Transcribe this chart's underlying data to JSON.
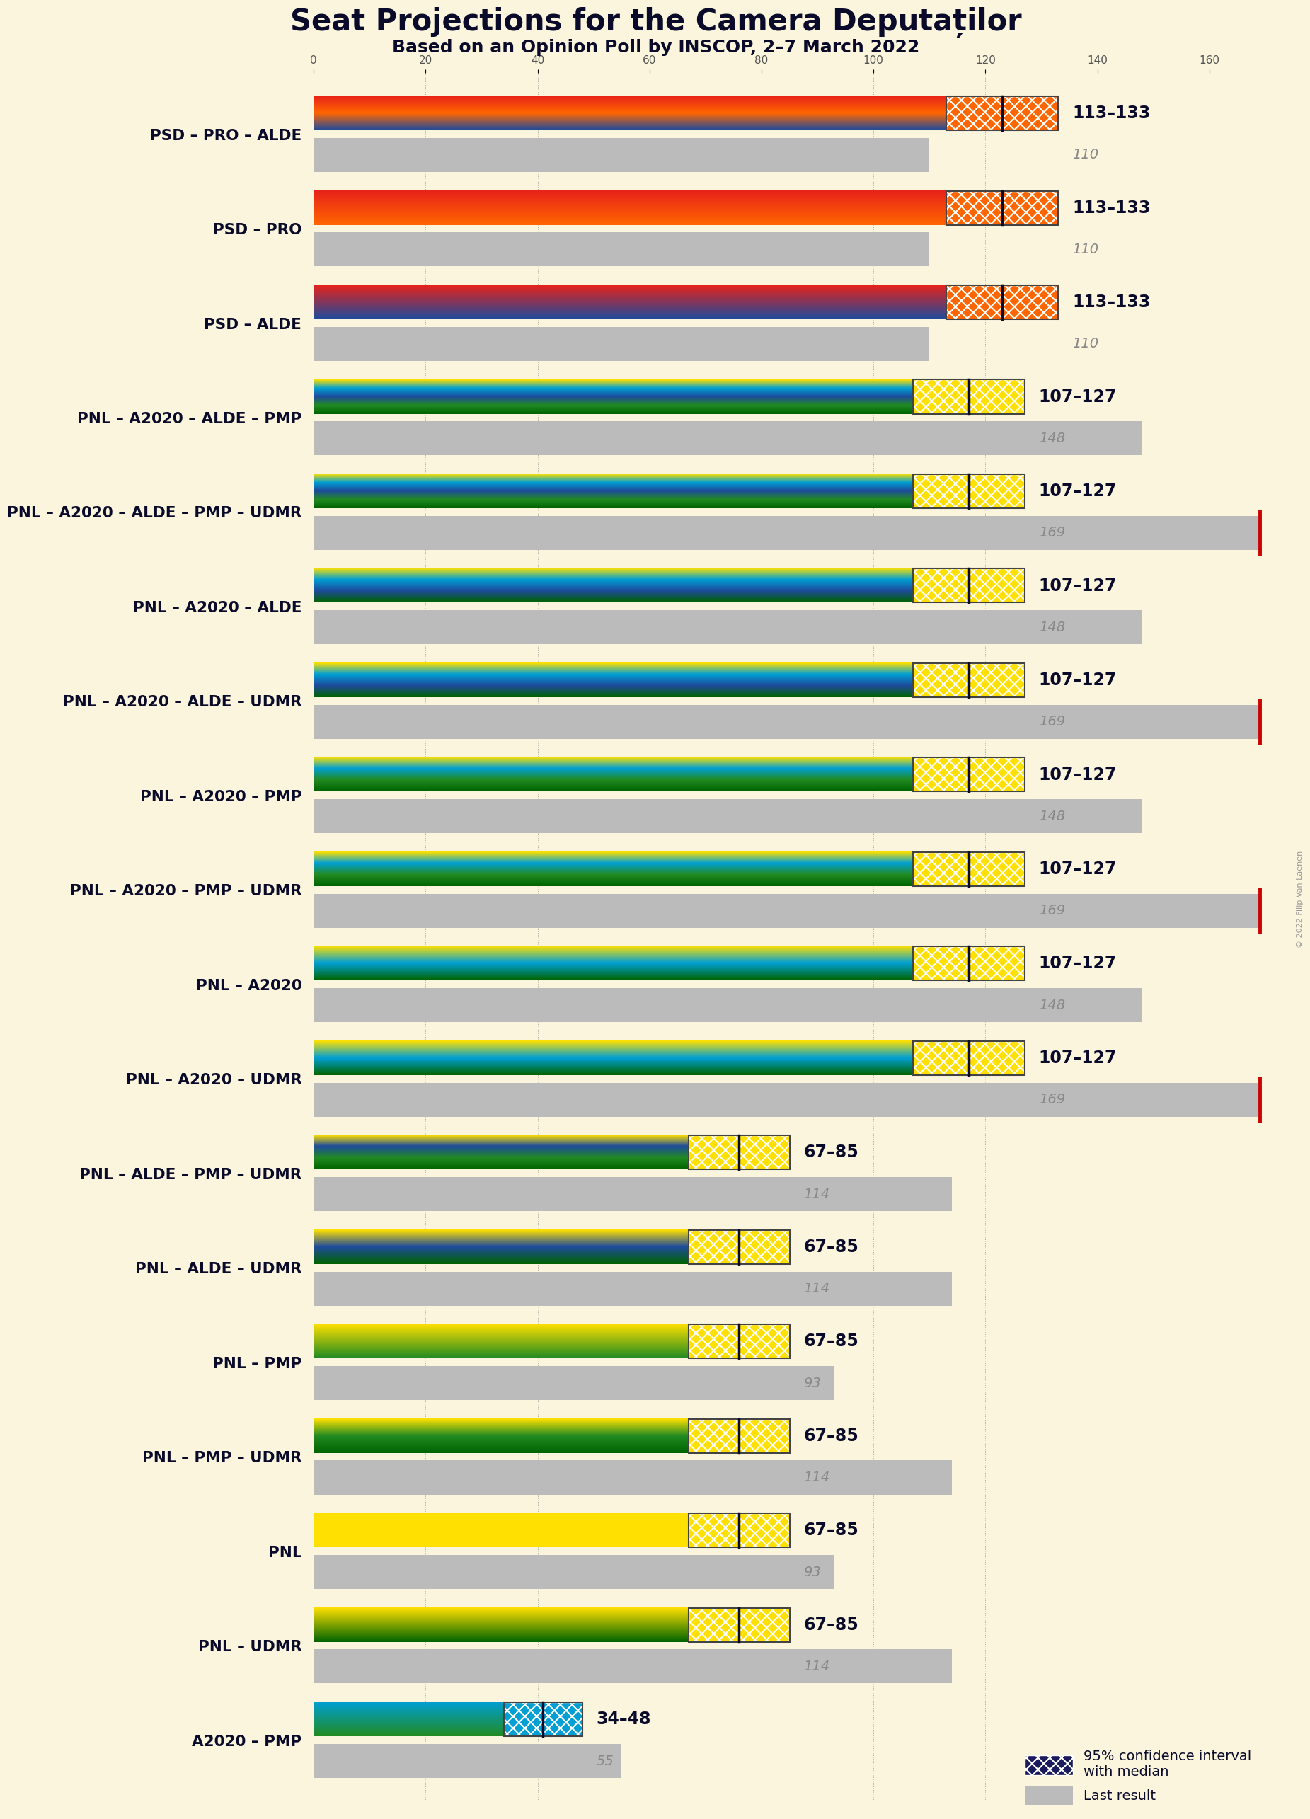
{
  "title": "Seat Projections for the Camera Deputaților",
  "subtitle": "Based on an Opinion Poll by INSCOP, 2–7 March 2022",
  "background_color": "#FAF5DC",
  "coalitions": [
    {
      "name": "PSD – PRO – ALDE",
      "low": 113,
      "high": 133,
      "median": 123,
      "last": 110,
      "last_exceed": false,
      "type": "PSD_PRO_ALDE"
    },
    {
      "name": "PSD – PRO",
      "low": 113,
      "high": 133,
      "median": 123,
      "last": 110,
      "last_exceed": false,
      "type": "PSD_PRO"
    },
    {
      "name": "PSD – ALDE",
      "low": 113,
      "high": 133,
      "median": 123,
      "last": 110,
      "last_exceed": false,
      "type": "PSD_ALDE"
    },
    {
      "name": "PNL – A2020 – ALDE – PMP",
      "low": 107,
      "high": 127,
      "median": 117,
      "last": 148,
      "last_exceed": false,
      "type": "PNL_A2020_ALDE_PMP"
    },
    {
      "name": "PNL – A2020 – ALDE – PMP – UDMR",
      "low": 107,
      "high": 127,
      "median": 117,
      "last": 169,
      "last_exceed": true,
      "type": "PNL_A2020_ALDE_PMP_UDMR"
    },
    {
      "name": "PNL – A2020 – ALDE",
      "low": 107,
      "high": 127,
      "median": 117,
      "last": 148,
      "last_exceed": false,
      "type": "PNL_A2020_ALDE"
    },
    {
      "name": "PNL – A2020 – ALDE – UDMR",
      "low": 107,
      "high": 127,
      "median": 117,
      "last": 169,
      "last_exceed": true,
      "type": "PNL_A2020_ALDE_UDMR"
    },
    {
      "name": "PNL – A2020 – PMP",
      "low": 107,
      "high": 127,
      "median": 117,
      "last": 148,
      "last_exceed": false,
      "type": "PNL_A2020_PMP"
    },
    {
      "name": "PNL – A2020 – PMP – UDMR",
      "low": 107,
      "high": 127,
      "median": 117,
      "last": 169,
      "last_exceed": true,
      "type": "PNL_A2020_PMP_UDMR"
    },
    {
      "name": "PNL – A2020",
      "low": 107,
      "high": 127,
      "median": 117,
      "last": 148,
      "last_exceed": false,
      "type": "PNL_A2020"
    },
    {
      "name": "PNL – A2020 – UDMR",
      "low": 107,
      "high": 127,
      "median": 117,
      "last": 169,
      "last_exceed": true,
      "type": "PNL_A2020_UDMR"
    },
    {
      "name": "PNL – ALDE – PMP – UDMR",
      "low": 67,
      "high": 85,
      "median": 76,
      "last": 114,
      "last_exceed": false,
      "type": "PNL_ALDE_PMP_UDMR"
    },
    {
      "name": "PNL – ALDE – UDMR",
      "low": 67,
      "high": 85,
      "median": 76,
      "last": 114,
      "last_exceed": false,
      "type": "PNL_ALDE_UDMR"
    },
    {
      "name": "PNL – PMP",
      "low": 67,
      "high": 85,
      "median": 76,
      "last": 93,
      "last_exceed": false,
      "type": "PNL_PMP"
    },
    {
      "name": "PNL – PMP – UDMR",
      "low": 67,
      "high": 85,
      "median": 76,
      "last": 114,
      "last_exceed": false,
      "type": "PNL_PMP_UDMR"
    },
    {
      "name": "PNL",
      "low": 67,
      "high": 85,
      "median": 76,
      "last": 93,
      "last_exceed": false,
      "type": "PNL_only"
    },
    {
      "name": "PNL – UDMR",
      "low": 67,
      "high": 85,
      "median": 76,
      "last": 114,
      "last_exceed": false,
      "type": "PNL_UDMR"
    },
    {
      "name": "A2020 – PMP",
      "low": 34,
      "high": 48,
      "median": 41,
      "last": 55,
      "last_exceed": false,
      "type": "A2020_PMP"
    }
  ],
  "party_colors": {
    "PSD": "#E8221A",
    "PRO": "#FF6600",
    "ALDE": "#1E4B9C",
    "PNL": "#FFE000",
    "A2020": "#009FD4",
    "PMP": "#228B22",
    "UDMR": "#006400",
    "A2020_dark": "#006994"
  },
  "x_max": 170,
  "x_ticks": [
    0,
    20,
    40,
    60,
    80,
    100,
    120,
    140,
    160
  ],
  "majority_line": 168,
  "copyright": "© 2022 Filip Van Laenen"
}
